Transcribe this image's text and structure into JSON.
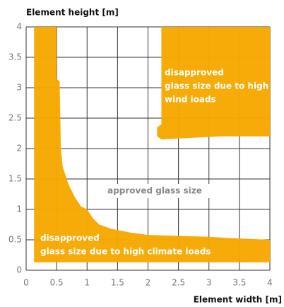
{
  "chart_data": {
    "type": "area",
    "ylabel": "Element height [m]",
    "xlabel": "Element width [m]",
    "xlim": [
      0,
      4
    ],
    "ylim": [
      0,
      4
    ],
    "xticks": [
      0,
      0.5,
      1,
      1.5,
      2,
      2.5,
      3,
      3.5,
      4
    ],
    "yticks": [
      0,
      0.5,
      1,
      1.5,
      2,
      2.5,
      3,
      3.5,
      4
    ],
    "grid": true,
    "annotation": "approved glass size",
    "series": [
      {
        "name": [
          "disapproved",
          "glass size due to high climate loads"
        ],
        "color": "#f7a800",
        "x": [
          0.13,
          0.5,
          0.5,
          0.55,
          0.57,
          0.6,
          0.7,
          0.8,
          0.9,
          1.0,
          1.1,
          1.2,
          1.4,
          1.7,
          2.0,
          3.0,
          3.3,
          4,
          4,
          0.13
        ],
        "values": [
          4,
          4,
          3.15,
          3.1,
          2.0,
          1.7,
          1.4,
          1.2,
          1.05,
          1.0,
          0.85,
          0.75,
          0.68,
          0.62,
          0.58,
          0.55,
          0.53,
          0.5,
          0.13,
          0.13
        ]
      },
      {
        "name": [
          "disapproved",
          "glass size due to high",
          "wind loads"
        ],
        "color": "#f7a800",
        "x": [
          2.22,
          4,
          4,
          3.2,
          2.6,
          2.22,
          2.15,
          2.15,
          2.22
        ],
        "values": [
          4,
          4,
          2.2,
          2.2,
          2.17,
          2.15,
          2.2,
          2.35,
          2.4
        ]
      }
    ]
  }
}
